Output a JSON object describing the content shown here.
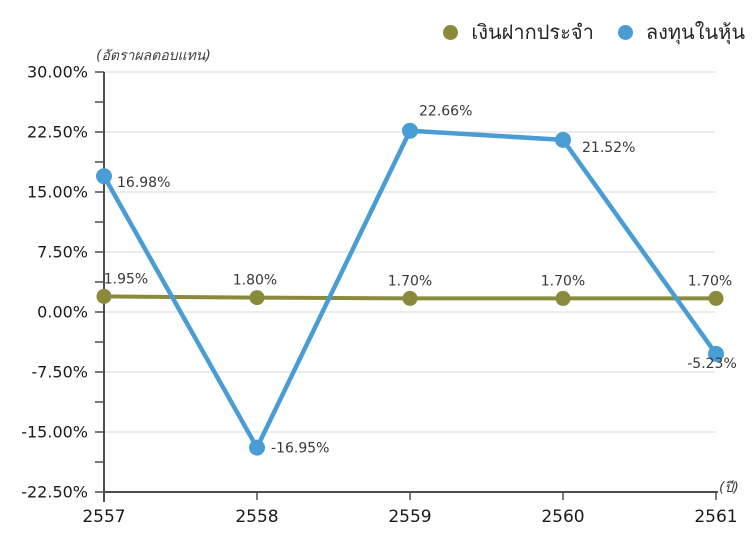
{
  "chart_data": {
    "type": "line",
    "title": "",
    "ylabel": "(อัตราผลตอบแทน)",
    "xlabel": "(ปี)",
    "categories": [
      "2557",
      "2558",
      "2559",
      "2560",
      "2561"
    ],
    "series": [
      {
        "key": "fixed-deposit",
        "name": "เงินฝากประจำ",
        "color": "#8a8a3c",
        "values": [
          1.95,
          1.8,
          1.7,
          1.7,
          1.7
        ],
        "point_labels": [
          "1.95%",
          "1.80%",
          "1.70%",
          "1.70%",
          "1.70%"
        ]
      },
      {
        "key": "stock-investment",
        "name": "ลงทุนในหุ้น",
        "color": "#4a9cd4",
        "values": [
          16.98,
          -16.95,
          22.66,
          21.52,
          -5.23
        ],
        "point_labels": [
          "16.98%",
          "-16.95%",
          "22.66%",
          "21.52%",
          "-5.23%"
        ]
      }
    ],
    "ylim": [
      -22.5,
      30
    ],
    "yticks": [
      30,
      22.5,
      15,
      7.5,
      0,
      -7.5,
      -15,
      -22.5
    ],
    "ytick_labels": [
      "30.00%",
      "22.50%",
      "15.00%",
      "7.50%",
      "0.00%",
      "-7.50%",
      "-15.00%",
      "-22.50%"
    ],
    "ytick_minor_step": 3.75,
    "grid": true,
    "grid_color": "#d9d9d9",
    "axis_color": "#4d4d4d",
    "legend_position": "top-right"
  }
}
